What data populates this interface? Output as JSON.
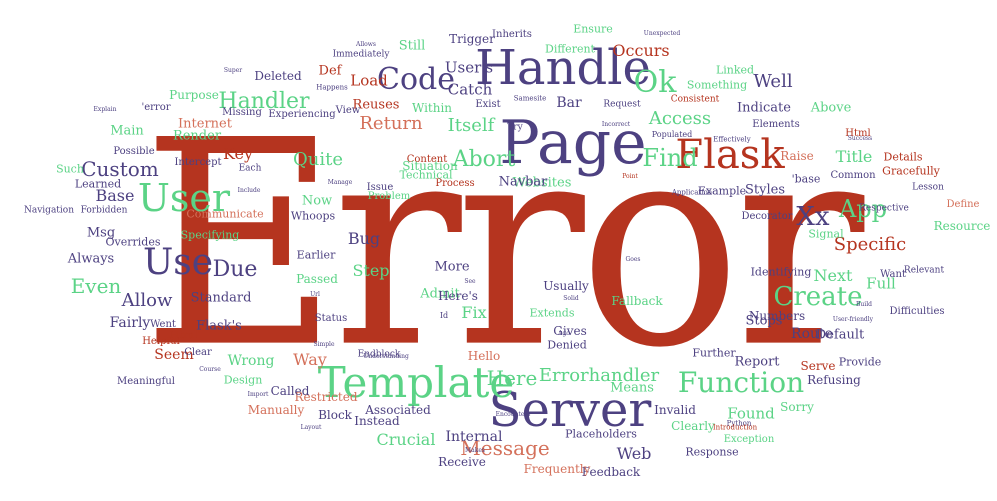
{
  "palette": {
    "red": "#b5341f",
    "purple": "#4d4181",
    "green": "#5bd386",
    "orange": "#d4705a",
    "background": "#ffffff"
  },
  "words": [
    {
      "text": "Error",
      "size": 270,
      "color": "red"
    },
    {
      "text": "Page",
      "size": 60,
      "color": "purple"
    },
    {
      "text": "Handle",
      "size": 48,
      "color": "purple"
    },
    {
      "text": "Server",
      "size": 48,
      "color": "purple"
    },
    {
      "text": "Template",
      "size": 42,
      "color": "green"
    },
    {
      "text": "Flask",
      "size": 40,
      "color": "red"
    },
    {
      "text": "User",
      "size": 38,
      "color": "green"
    },
    {
      "text": "Use",
      "size": 36,
      "color": "purple"
    },
    {
      "text": "Code",
      "size": 30,
      "color": "purple"
    },
    {
      "text": "Function",
      "size": 28,
      "color": "green"
    },
    {
      "text": "Ok",
      "size": 30,
      "color": "green"
    },
    {
      "text": "Create",
      "size": 26,
      "color": "green"
    },
    {
      "text": "App",
      "size": 24,
      "color": "green"
    },
    {
      "text": "Xx",
      "size": 26,
      "color": "purple"
    },
    {
      "text": "Find",
      "size": 24,
      "color": "green"
    },
    {
      "text": "Abort",
      "size": 22,
      "color": "green"
    },
    {
      "text": "Custom",
      "size": 20,
      "color": "purple"
    },
    {
      "text": "Handler",
      "size": 22,
      "color": "green"
    },
    {
      "text": "Due",
      "size": 22,
      "color": "purple"
    },
    {
      "text": "Message",
      "size": 20,
      "color": "orange"
    },
    {
      "text": "Errorhandler",
      "size": 18,
      "color": "green"
    },
    {
      "text": "Here",
      "size": 20,
      "color": "green"
    },
    {
      "text": "Even",
      "size": 20,
      "color": "green"
    },
    {
      "text": "Allow",
      "size": 18,
      "color": "purple"
    },
    {
      "text": "Well",
      "size": 18,
      "color": "purple"
    },
    {
      "text": "Specific",
      "size": 18,
      "color": "red"
    },
    {
      "text": "Access",
      "size": 18,
      "color": "green"
    },
    {
      "text": "Return",
      "size": 18,
      "color": "orange"
    },
    {
      "text": "Itself",
      "size": 18,
      "color": "green"
    },
    {
      "text": "Quite",
      "size": 18,
      "color": "green"
    },
    {
      "text": "Step",
      "size": 16,
      "color": "green"
    },
    {
      "text": "Bug",
      "size": 16,
      "color": "purple"
    },
    {
      "text": "Title",
      "size": 16,
      "color": "green"
    },
    {
      "text": "Key",
      "size": 16,
      "color": "red"
    },
    {
      "text": "Base",
      "size": 16,
      "color": "purple"
    },
    {
      "text": "Fix",
      "size": 16,
      "color": "green"
    },
    {
      "text": "Next",
      "size": 16,
      "color": "green"
    },
    {
      "text": "Full",
      "size": 15,
      "color": "green"
    },
    {
      "text": "Way",
      "size": 16,
      "color": "orange"
    },
    {
      "text": "Crucial",
      "size": 16,
      "color": "green"
    },
    {
      "text": "Web",
      "size": 16,
      "color": "purple"
    },
    {
      "text": "Found",
      "size": 15,
      "color": "green"
    },
    {
      "text": "Occurs",
      "size": 16,
      "color": "red"
    },
    {
      "text": "Load",
      "size": 15,
      "color": "red"
    },
    {
      "text": "Catch",
      "size": 15,
      "color": "purple"
    },
    {
      "text": "User's",
      "size": 15,
      "color": "purple"
    },
    {
      "text": "Internal",
      "size": 14,
      "color": "purple"
    },
    {
      "text": "Route",
      "size": 14,
      "color": "purple"
    },
    {
      "text": "Wrong",
      "size": 14,
      "color": "green"
    },
    {
      "text": "Fairly",
      "size": 14,
      "color": "purple"
    },
    {
      "text": "Seem",
      "size": 14,
      "color": "red"
    },
    {
      "text": "Standard",
      "size": 13,
      "color": "purple"
    },
    {
      "text": "Flask's",
      "size": 13,
      "color": "purple"
    },
    {
      "text": "Msg",
      "size": 13,
      "color": "purple"
    },
    {
      "text": "Always",
      "size": 13,
      "color": "purple"
    },
    {
      "text": "Main",
      "size": 13,
      "color": "green"
    },
    {
      "text": "Render",
      "size": 13,
      "color": "green"
    },
    {
      "text": "Internet",
      "size": 13,
      "color": "orange"
    },
    {
      "text": "Purpose",
      "size": 12,
      "color": "green"
    },
    {
      "text": "Deleted",
      "size": 12,
      "color": "purple"
    },
    {
      "text": "Def",
      "size": 13,
      "color": "red"
    },
    {
      "text": "Still",
      "size": 13,
      "color": "green"
    },
    {
      "text": "Trigger",
      "size": 12,
      "color": "purple"
    },
    {
      "text": "Inherits",
      "size": 10,
      "color": "purple"
    },
    {
      "text": "Ensure",
      "size": 11,
      "color": "green"
    },
    {
      "text": "Different",
      "size": 11,
      "color": "green"
    },
    {
      "text": "Linked",
      "size": 11,
      "color": "green"
    },
    {
      "text": "Something",
      "size": 11,
      "color": "green"
    },
    {
      "text": "Bar",
      "size": 14,
      "color": "purple"
    },
    {
      "text": "Reuses",
      "size": 13,
      "color": "red"
    },
    {
      "text": "Within",
      "size": 12,
      "color": "green"
    },
    {
      "text": "Exist",
      "size": 10,
      "color": "purple"
    },
    {
      "text": "Indicate",
      "size": 13,
      "color": "purple"
    },
    {
      "text": "Above",
      "size": 13,
      "color": "green"
    },
    {
      "text": "Default",
      "size": 13,
      "color": "purple"
    },
    {
      "text": "Serve",
      "size": 12,
      "color": "red"
    },
    {
      "text": "Provide",
      "size": 11,
      "color": "purple"
    },
    {
      "text": "Refusing",
      "size": 12,
      "color": "purple"
    },
    {
      "text": "Sorry",
      "size": 12,
      "color": "green"
    },
    {
      "text": "Report",
      "size": 13,
      "color": "purple"
    },
    {
      "text": "Further",
      "size": 11,
      "color": "purple"
    },
    {
      "text": "Means",
      "size": 13,
      "color": "green"
    },
    {
      "text": "Invalid",
      "size": 12,
      "color": "purple"
    },
    {
      "text": "Clearly",
      "size": 12,
      "color": "green"
    },
    {
      "text": "Response",
      "size": 11,
      "color": "purple"
    },
    {
      "text": "Feedback",
      "size": 12,
      "color": "purple"
    },
    {
      "text": "Frequently",
      "size": 12,
      "color": "orange"
    },
    {
      "text": "Receive",
      "size": 12,
      "color": "purple"
    },
    {
      "text": "Placeholders",
      "size": 11,
      "color": "purple"
    },
    {
      "text": "Exception",
      "size": 10,
      "color": "green"
    },
    {
      "text": "Stops",
      "size": 13,
      "color": "purple"
    },
    {
      "text": "Numbers",
      "size": 12,
      "color": "purple"
    },
    {
      "text": "Identifying",
      "size": 11,
      "color": "purple"
    },
    {
      "text": "Signal",
      "size": 11,
      "color": "green"
    },
    {
      "text": "Resource",
      "size": 12,
      "color": "green"
    },
    {
      "text": "Define",
      "size": 10,
      "color": "orange"
    },
    {
      "text": "Gracefully",
      "size": 11,
      "color": "red"
    },
    {
      "text": "Details",
      "size": 11,
      "color": "red"
    },
    {
      "text": "Raise",
      "size": 12,
      "color": "orange"
    },
    {
      "text": "Common",
      "size": 10,
      "color": "purple"
    },
    {
      "text": "Styles",
      "size": 13,
      "color": "purple"
    },
    {
      "text": "Example",
      "size": 11,
      "color": "purple"
    },
    {
      "text": "Websites",
      "size": 13,
      "color": "green"
    },
    {
      "text": "Navbar",
      "size": 13,
      "color": "purple"
    },
    {
      "text": "Process",
      "size": 10,
      "color": "red"
    },
    {
      "text": "Content",
      "size": 10,
      "color": "red"
    },
    {
      "text": "Issue",
      "size": 10,
      "color": "purple"
    },
    {
      "text": "Problem",
      "size": 10,
      "color": "green"
    },
    {
      "text": "Technical",
      "size": 11,
      "color": "green"
    },
    {
      "text": "Situation",
      "size": 12,
      "color": "green"
    },
    {
      "text": "Now",
      "size": 13,
      "color": "green"
    },
    {
      "text": "Whoops",
      "size": 11,
      "color": "purple"
    },
    {
      "text": "Earlier",
      "size": 11,
      "color": "purple"
    },
    {
      "text": "Passed",
      "size": 12,
      "color": "green"
    },
    {
      "text": "More",
      "size": 13,
      "color": "purple"
    },
    {
      "text": "Admit",
      "size": 13,
      "color": "green"
    },
    {
      "text": "Here's",
      "size": 12,
      "color": "purple"
    },
    {
      "text": "Extends",
      "size": 11,
      "color": "green"
    },
    {
      "text": "Gives",
      "size": 12,
      "color": "purple"
    },
    {
      "text": "Denied",
      "size": 11,
      "color": "purple"
    },
    {
      "text": "Usually",
      "size": 12,
      "color": "purple"
    },
    {
      "text": "Fallback",
      "size": 12,
      "color": "green"
    },
    {
      "text": "Hello",
      "size": 12,
      "color": "orange"
    },
    {
      "text": "Endblock",
      "size": 9,
      "color": "purple"
    },
    {
      "text": "Associated",
      "size": 12,
      "color": "purple"
    },
    {
      "text": "Restricted",
      "size": 12,
      "color": "orange"
    },
    {
      "text": "Block",
      "size": 12,
      "color": "purple"
    },
    {
      "text": "Manually",
      "size": 12,
      "color": "orange"
    },
    {
      "text": "Called",
      "size": 12,
      "color": "purple"
    },
    {
      "text": "Design",
      "size": 11,
      "color": "green"
    },
    {
      "text": "Instead",
      "size": 12,
      "color": "purple"
    },
    {
      "text": "Status",
      "size": 10,
      "color": "purple"
    },
    {
      "text": "Specifying",
      "size": 11,
      "color": "green"
    },
    {
      "text": "Overrides",
      "size": 11,
      "color": "purple"
    },
    {
      "text": "Communicate",
      "size": 11,
      "color": "orange"
    },
    {
      "text": "Learned",
      "size": 11,
      "color": "purple"
    },
    {
      "text": "Such",
      "size": 11,
      "color": "green"
    },
    {
      "text": "Navigation",
      "size": 9,
      "color": "purple"
    },
    {
      "text": "Forbidden",
      "size": 9,
      "color": "purple"
    },
    {
      "text": "Meaningful",
      "size": 10,
      "color": "purple"
    },
    {
      "text": "Helpful",
      "size": 10,
      "color": "red"
    },
    {
      "text": "Went",
      "size": 10,
      "color": "purple"
    },
    {
      "text": "Html'",
      "size": 11,
      "color": "red"
    },
    {
      "text": "Clear",
      "size": 10,
      "color": "purple"
    },
    {
      "text": "Intercept",
      "size": 10,
      "color": "purple"
    },
    {
      "text": "Possible",
      "size": 10,
      "color": "purple"
    },
    {
      "text": "Each",
      "size": 9,
      "color": "purple"
    },
    {
      "text": "Missing",
      "size": 10,
      "color": "purple"
    },
    {
      "text": "Experiencing",
      "size": 10,
      "color": "purple"
    },
    {
      "text": "View",
      "size": 10,
      "color": "purple"
    },
    {
      "text": "'error",
      "size": 10,
      "color": "purple"
    },
    {
      "text": "Immediately",
      "size": 9,
      "color": "purple"
    },
    {
      "text": "Happens",
      "size": 7,
      "color": "purple"
    },
    {
      "text": "'base",
      "size": 11,
      "color": "purple"
    },
    {
      "text": "Decorator",
      "size": 10,
      "color": "purple"
    },
    {
      "text": "Respective",
      "size": 9,
      "color": "purple"
    },
    {
      "text": "Lesson",
      "size": 9,
      "color": "purple"
    },
    {
      "text": "Want",
      "size": 10,
      "color": "purple"
    },
    {
      "text": "Relevant",
      "size": 9,
      "color": "purple"
    },
    {
      "text": "Difficulties",
      "size": 10,
      "color": "purple"
    },
    {
      "text": "Html",
      "size": 10,
      "color": "red"
    },
    {
      "text": "Elements",
      "size": 10,
      "color": "purple"
    },
    {
      "text": "Effectively",
      "size": 7,
      "color": "purple"
    },
    {
      "text": "Populated",
      "size": 8,
      "color": "purple"
    },
    {
      "text": "Consistent",
      "size": 9,
      "color": "red"
    },
    {
      "text": "Request",
      "size": 9,
      "color": "purple"
    },
    {
      "text": "Samesite",
      "size": 7,
      "color": "purple"
    },
    {
      "text": "Try",
      "size": 9,
      "color": "purple"
    },
    {
      "text": "Application",
      "size": 7,
      "color": "purple"
    },
    {
      "text": "Python",
      "size": 7,
      "color": "purple"
    },
    {
      "text": "Introduction",
      "size": 7,
      "color": "red"
    },
    {
      "text": "Unexpected",
      "size": 6,
      "color": "purple"
    },
    {
      "text": "Super",
      "size": 6,
      "color": "purple"
    },
    {
      "text": "Explain",
      "size": 6,
      "color": "purple"
    },
    {
      "text": "Include",
      "size": 6,
      "color": "purple"
    },
    {
      "text": "Url",
      "size": 6,
      "color": "purple"
    },
    {
      "text": "Simple",
      "size": 6,
      "color": "purple"
    },
    {
      "text": "Import",
      "size": 6,
      "color": "purple"
    },
    {
      "text": "Layout",
      "size": 6,
      "color": "purple"
    },
    {
      "text": "Course",
      "size": 6,
      "color": "purple"
    },
    {
      "text": "Understanding",
      "size": 6,
      "color": "purple"
    },
    {
      "text": "Makes",
      "size": 6,
      "color": "purple"
    },
    {
      "text": "Encounters",
      "size": 6,
      "color": "purple"
    },
    {
      "text": "Ago",
      "size": 6,
      "color": "purple"
    },
    {
      "text": "Solid",
      "size": 6,
      "color": "purple"
    },
    {
      "text": "Goes",
      "size": 6,
      "color": "purple"
    },
    {
      "text": "Build",
      "size": 6,
      "color": "purple"
    },
    {
      "text": "User-friendly",
      "size": 6,
      "color": "purple"
    },
    {
      "text": "Success",
      "size": 6,
      "color": "purple"
    },
    {
      "text": "Point",
      "size": 6,
      "color": "red"
    },
    {
      "text": "Incorrect",
      "size": 6,
      "color": "purple"
    },
    {
      "text": "Manage",
      "size": 6,
      "color": "purple"
    },
    {
      "text": "Id",
      "size": 8,
      "color": "purple"
    },
    {
      "text": "See",
      "size": 6,
      "color": "purple"
    },
    {
      "text": "Allows",
      "size": 6,
      "color": "purple"
    }
  ]
}
